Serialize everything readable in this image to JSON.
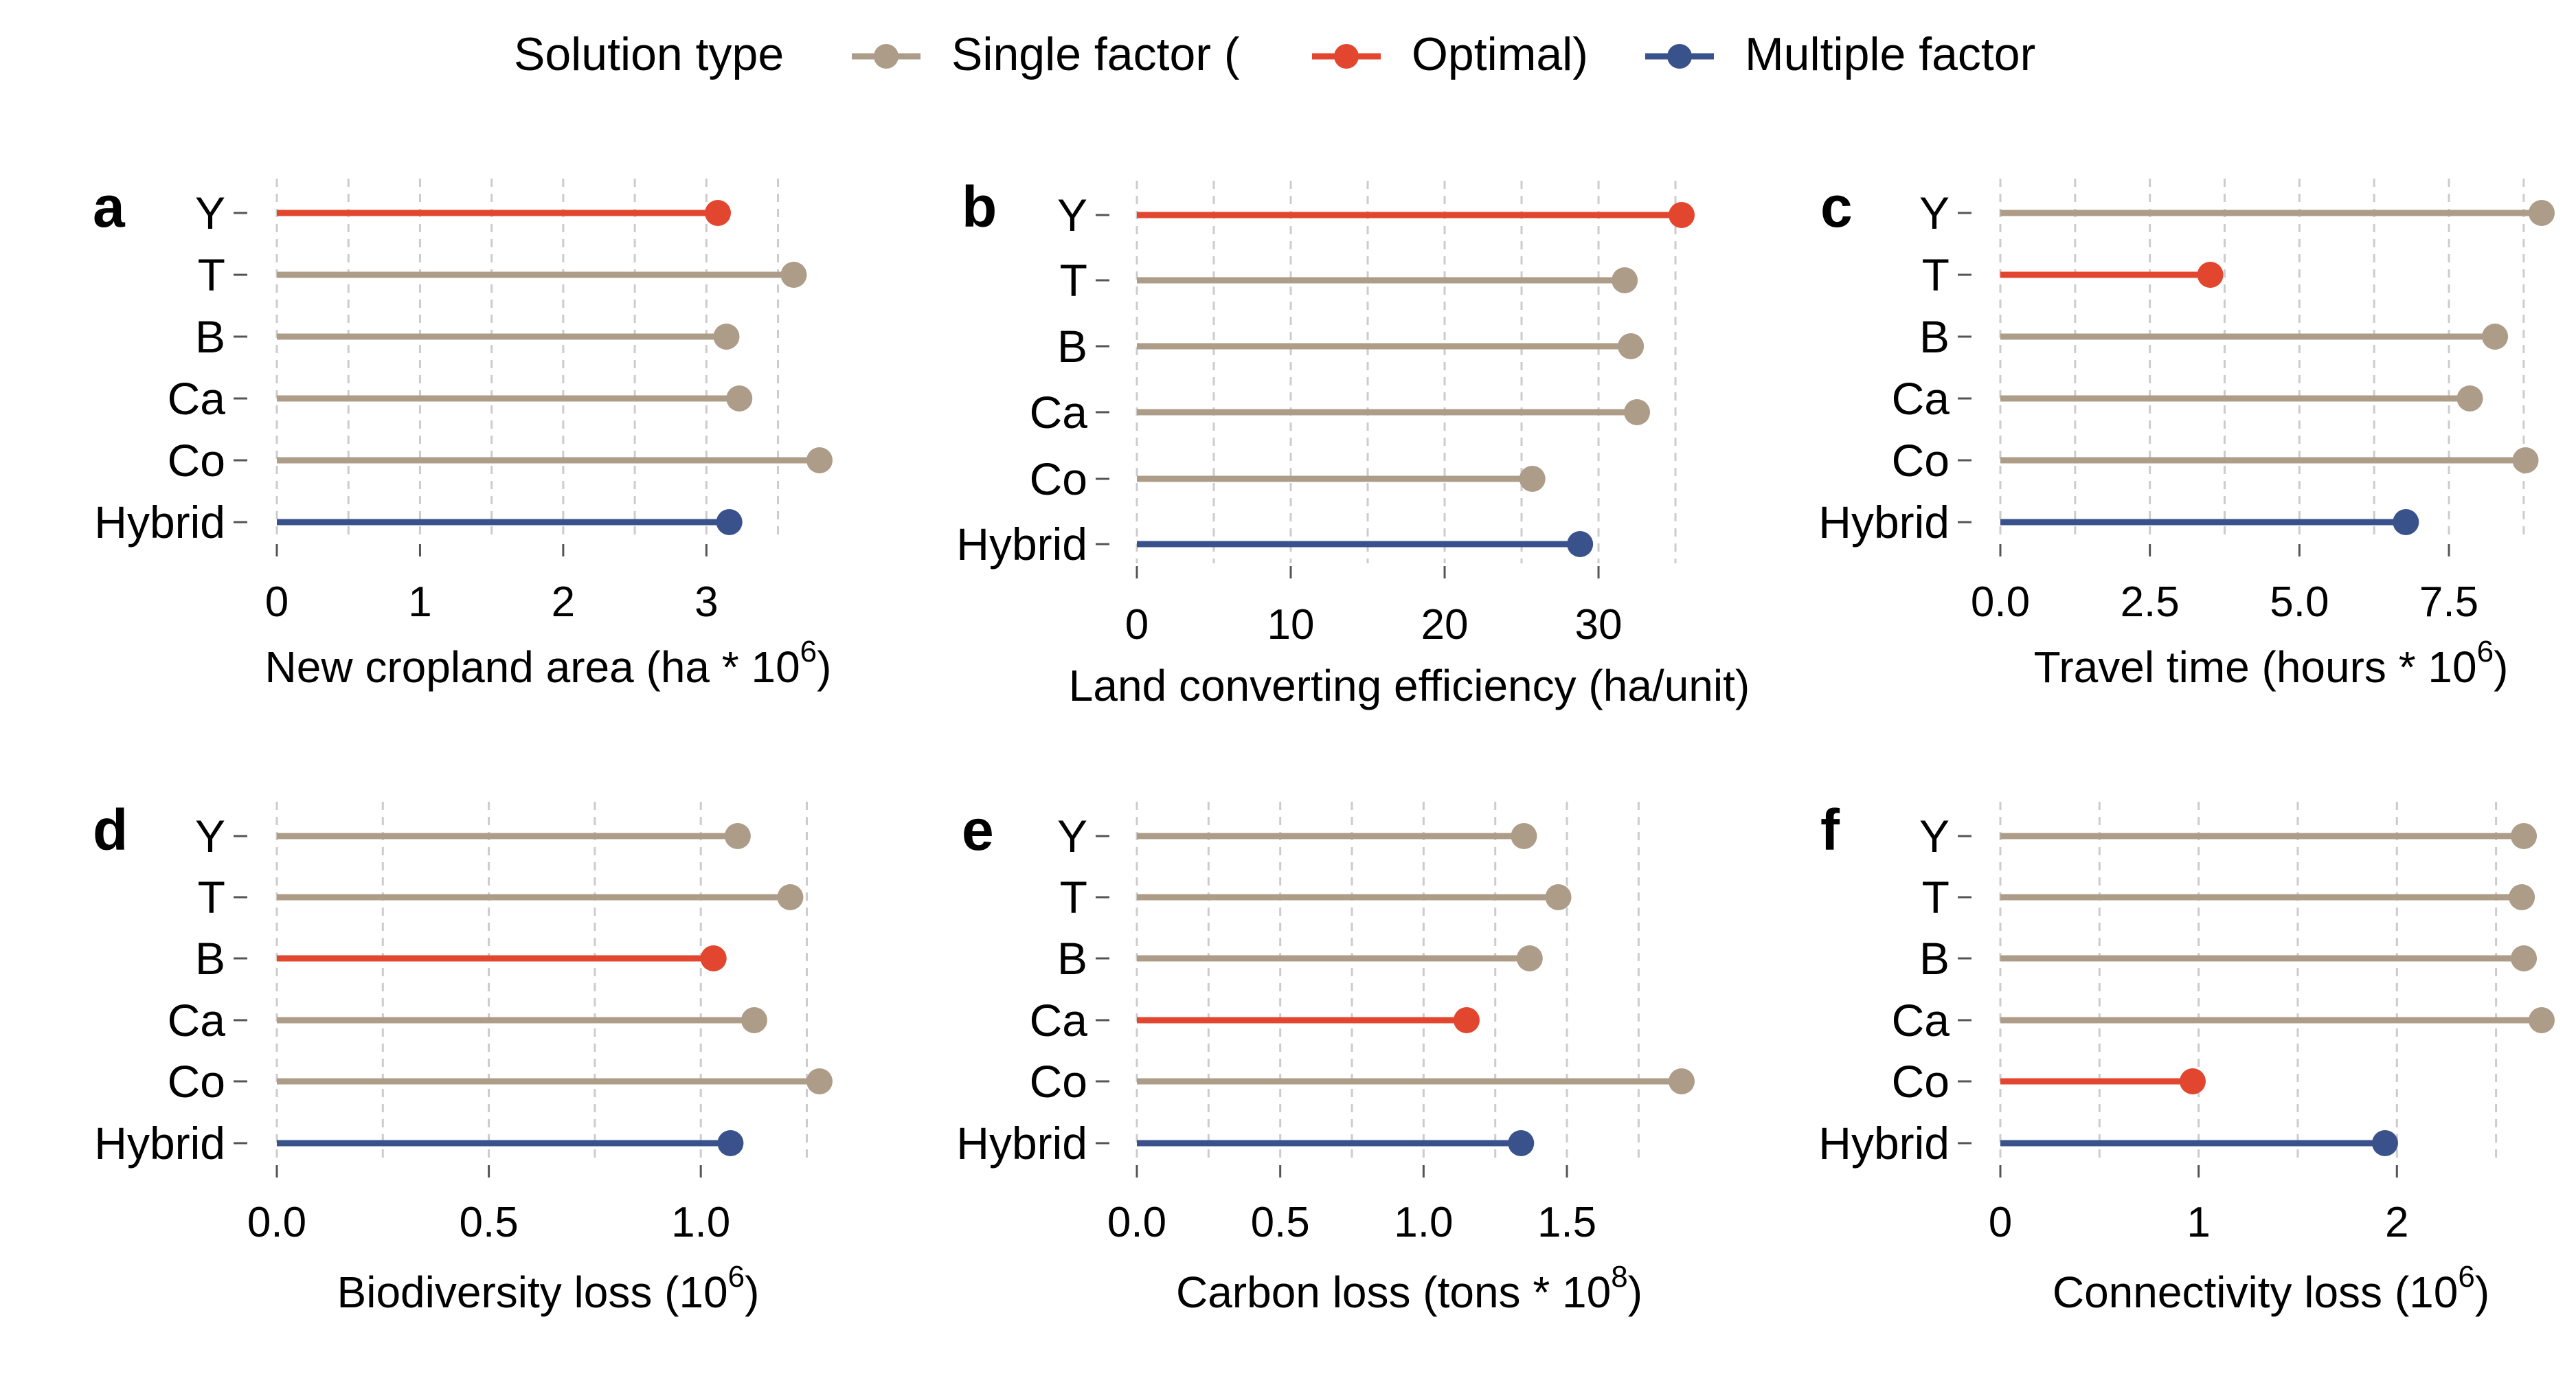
{
  "legend": {
    "title": "Solution type",
    "items": [
      {
        "label": "Single factor (",
        "color": "#ad9c88"
      },
      {
        "label": "Optimal)",
        "color": "#e2462f"
      },
      {
        "label": "Multiple factor",
        "color": "#3a528c"
      }
    ]
  },
  "colors": {
    "single": "#ad9c88",
    "optimal": "#e2462f",
    "multiple": "#3a528c",
    "grid": "#cccccc"
  },
  "chart_data": [
    {
      "panel": "a",
      "type": "lollipop",
      "categories": [
        "Y",
        "T",
        "B",
        "Ca",
        "Co",
        "Hybrid"
      ],
      "values": [
        3.08,
        3.61,
        3.14,
        3.23,
        3.79,
        3.16
      ],
      "kinds": [
        "optimal",
        "single",
        "single",
        "single",
        "single",
        "multiple"
      ],
      "xlabel": "New cropland area (ha * 10",
      "xlabel_sup": "6",
      "xlabel_end": ")",
      "xlim": [
        0,
        3.79
      ],
      "ticks": [
        0,
        1,
        2,
        3
      ],
      "tick_labels": [
        "0",
        "1",
        "2",
        "3"
      ]
    },
    {
      "panel": "b",
      "type": "lollipop",
      "categories": [
        "Y",
        "T",
        "B",
        "Ca",
        "Co",
        "Hybrid"
      ],
      "values": [
        35.4,
        31.7,
        32.1,
        32.5,
        25.7,
        28.8
      ],
      "kinds": [
        "optimal",
        "single",
        "single",
        "single",
        "single",
        "multiple"
      ],
      "xlabel": "Land converting efficiency (ha/unit)",
      "xlabel_sup": "",
      "xlabel_end": "",
      "xlim": [
        0,
        35.4
      ],
      "ticks": [
        0,
        10,
        20,
        30
      ],
      "tick_labels": [
        "0",
        "10",
        "20",
        "30"
      ]
    },
    {
      "panel": "c",
      "type": "lollipop",
      "categories": [
        "Y",
        "T",
        "B",
        "Ca",
        "Co",
        "Hybrid"
      ],
      "values": [
        9.05,
        3.51,
        8.27,
        7.85,
        8.78,
        6.78
      ],
      "kinds": [
        "single",
        "optimal",
        "single",
        "single",
        "single",
        "multiple"
      ],
      "xlabel": "Travel time (hours * 10",
      "xlabel_sup": "6",
      "xlabel_end": ")",
      "xlim": [
        0,
        9.05
      ],
      "ticks": [
        0,
        2.5,
        5,
        7.5
      ],
      "tick_labels": [
        "0.0",
        "2.5",
        "5.0",
        "7.5"
      ]
    },
    {
      "panel": "d",
      "type": "lollipop",
      "categories": [
        "Y",
        "T",
        "B",
        "Ca",
        "Co",
        "Hybrid"
      ],
      "values": [
        1.087,
        1.211,
        1.03,
        1.126,
        1.28,
        1.07
      ],
      "kinds": [
        "single",
        "single",
        "optimal",
        "single",
        "single",
        "multiple"
      ],
      "xlabel": "Biodiversity loss (10",
      "xlabel_sup": "6",
      "xlabel_end": ")",
      "xlim": [
        0,
        1.28
      ],
      "ticks": [
        0,
        0.5,
        1.0
      ],
      "tick_labels": [
        "0.0",
        "0.5",
        "1.0"
      ]
    },
    {
      "panel": "e",
      "type": "lollipop",
      "categories": [
        "Y",
        "T",
        "B",
        "Ca",
        "Co",
        "Hybrid"
      ],
      "values": [
        1.35,
        1.47,
        1.37,
        1.15,
        1.9,
        1.34
      ],
      "kinds": [
        "single",
        "single",
        "single",
        "optimal",
        "single",
        "multiple"
      ],
      "xlabel": "Carbon loss (tons * 10",
      "xlabel_sup": "8",
      "xlabel_end": ")",
      "xlim": [
        0,
        1.9
      ],
      "ticks": [
        0,
        0.5,
        1.0,
        1.5
      ],
      "tick_labels": [
        "0.0",
        "0.5",
        "1.0",
        "1.5"
      ]
    },
    {
      "panel": "f",
      "type": "lollipop",
      "categories": [
        "Y",
        "T",
        "B",
        "Ca",
        "Co",
        "Hybrid"
      ],
      "values": [
        2.64,
        2.63,
        2.64,
        2.73,
        0.97,
        1.94
      ],
      "kinds": [
        "single",
        "single",
        "single",
        "single",
        "optimal",
        "multiple"
      ],
      "xlabel": "Connectivity loss (10",
      "xlabel_sup": "6",
      "xlabel_end": ")",
      "xlim": [
        0,
        2.73
      ],
      "ticks": [
        0,
        1,
        2
      ],
      "tick_labels": [
        "0",
        "1",
        "2"
      ]
    }
  ]
}
